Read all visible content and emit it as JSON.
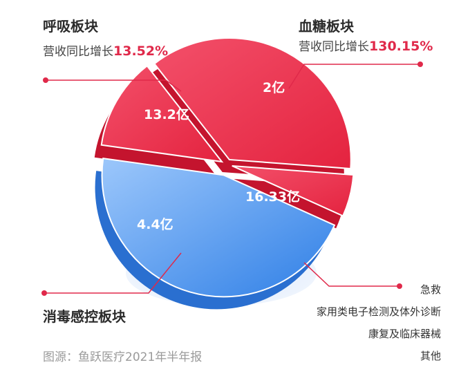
{
  "chart_data": {
    "type": "pie",
    "unit": "亿",
    "slices": [
      {
        "segment": "呼吸板块",
        "value": 13.2,
        "label": "13.2亿",
        "growth_prefix": "营收同比增长",
        "growth": "13.52%",
        "color": "#e8344e"
      },
      {
        "segment": "血糖板块",
        "value": 2,
        "label": "2亿",
        "growth_prefix": "营收同比增长",
        "growth": "130.15%",
        "color": "#e8344e"
      },
      {
        "segment": "",
        "value": 16.33,
        "label": "16.33亿",
        "color": "#4d9bf2"
      },
      {
        "segment": "消毒感控板块",
        "value": 4.4,
        "label": "4.4亿",
        "color": "#e8344e"
      }
    ],
    "blue_group_items": [
      "急救",
      "家用类电子检测及体外诊断",
      "康复及临床器械",
      "其他"
    ],
    "accent_color": "#e0294a",
    "blue_color": "#4d9bf2"
  },
  "source": "图源：鱼跃医疗2021年半年报"
}
